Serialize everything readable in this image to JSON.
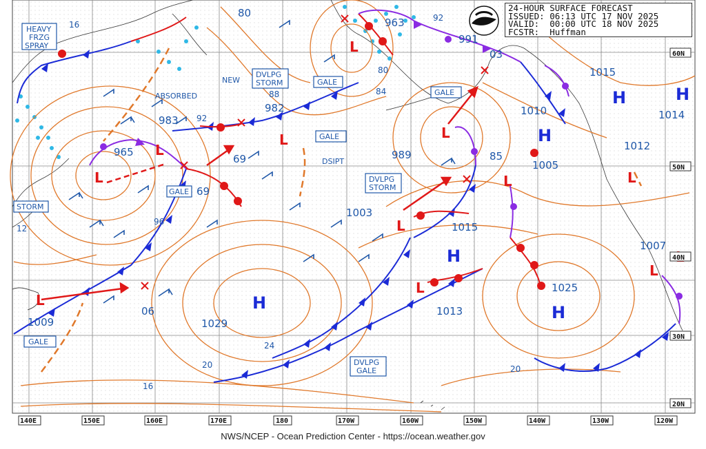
{
  "header": {
    "line1": "24-HOUR SURFACE FORECAST",
    "line2": "ISSUED: 06:13 UTC 17 NOV 2025",
    "line3": "VALID:  00:00 UTC 18 NOV 2025",
    "line4": "FCSTR:  Huffman"
  },
  "footer": "NWS/NCEP - Ocean Prediction Center - https://ocean.weather.gov",
  "longitude_labels": [
    "140E",
    "150E",
    "160E",
    "170E",
    "180",
    "170W",
    "160W",
    "150W",
    "140W",
    "130W",
    "120W"
  ],
  "latitude_labels": [
    "60N",
    "50N",
    "40N",
    "30N",
    "20N"
  ],
  "highs": [
    {
      "label": "H",
      "pressure": "1029"
    },
    {
      "label": "H",
      "pressure": "1015"
    },
    {
      "label": "H",
      "pressure": "1025"
    },
    {
      "label": "H",
      "pressure": "1015"
    },
    {
      "label": "H",
      "pressure": "1014"
    },
    {
      "label": "H",
      "pressure": "1010"
    }
  ],
  "lows": [
    "963",
    "991",
    "983",
    "982",
    "965",
    "989",
    "1003",
    "1005",
    "1013",
    "1012",
    "1007",
    "1009"
  ],
  "warnings": {
    "heavy_frzg": [
      "HEAVY",
      "FRZG",
      "SPRAY"
    ],
    "storm_w": "STORM",
    "gale_sw": "GALE",
    "gale_w": "GALE",
    "dvlpg_storm_n": [
      "DVLPG",
      "STORM"
    ],
    "gale_n1": "GALE",
    "gale_n2": "GALE",
    "gale_c": "GALE",
    "dvlpg_storm_c": [
      "DVLPG",
      "STORM"
    ],
    "dvlpg_gale_s": [
      "DVLPG",
      "GALE"
    ]
  },
  "text_labels": {
    "absorbed": "ABSORBED",
    "new": "NEW",
    "dsipt": "DSIPT"
  },
  "isobar_labels": [
    "80",
    "16",
    "92",
    "88",
    "84",
    "80",
    "92",
    "69",
    "69",
    "96",
    "12",
    "06",
    "24",
    "20",
    "16",
    "20",
    "85",
    "03"
  ],
  "colors": {
    "isobar": "#e0782a",
    "cold_front": "#1b2bd6",
    "warm_front": "#e01818",
    "occluded": "#8a2be2",
    "label": "#1f57a8",
    "ice": "#2fb8e6"
  }
}
